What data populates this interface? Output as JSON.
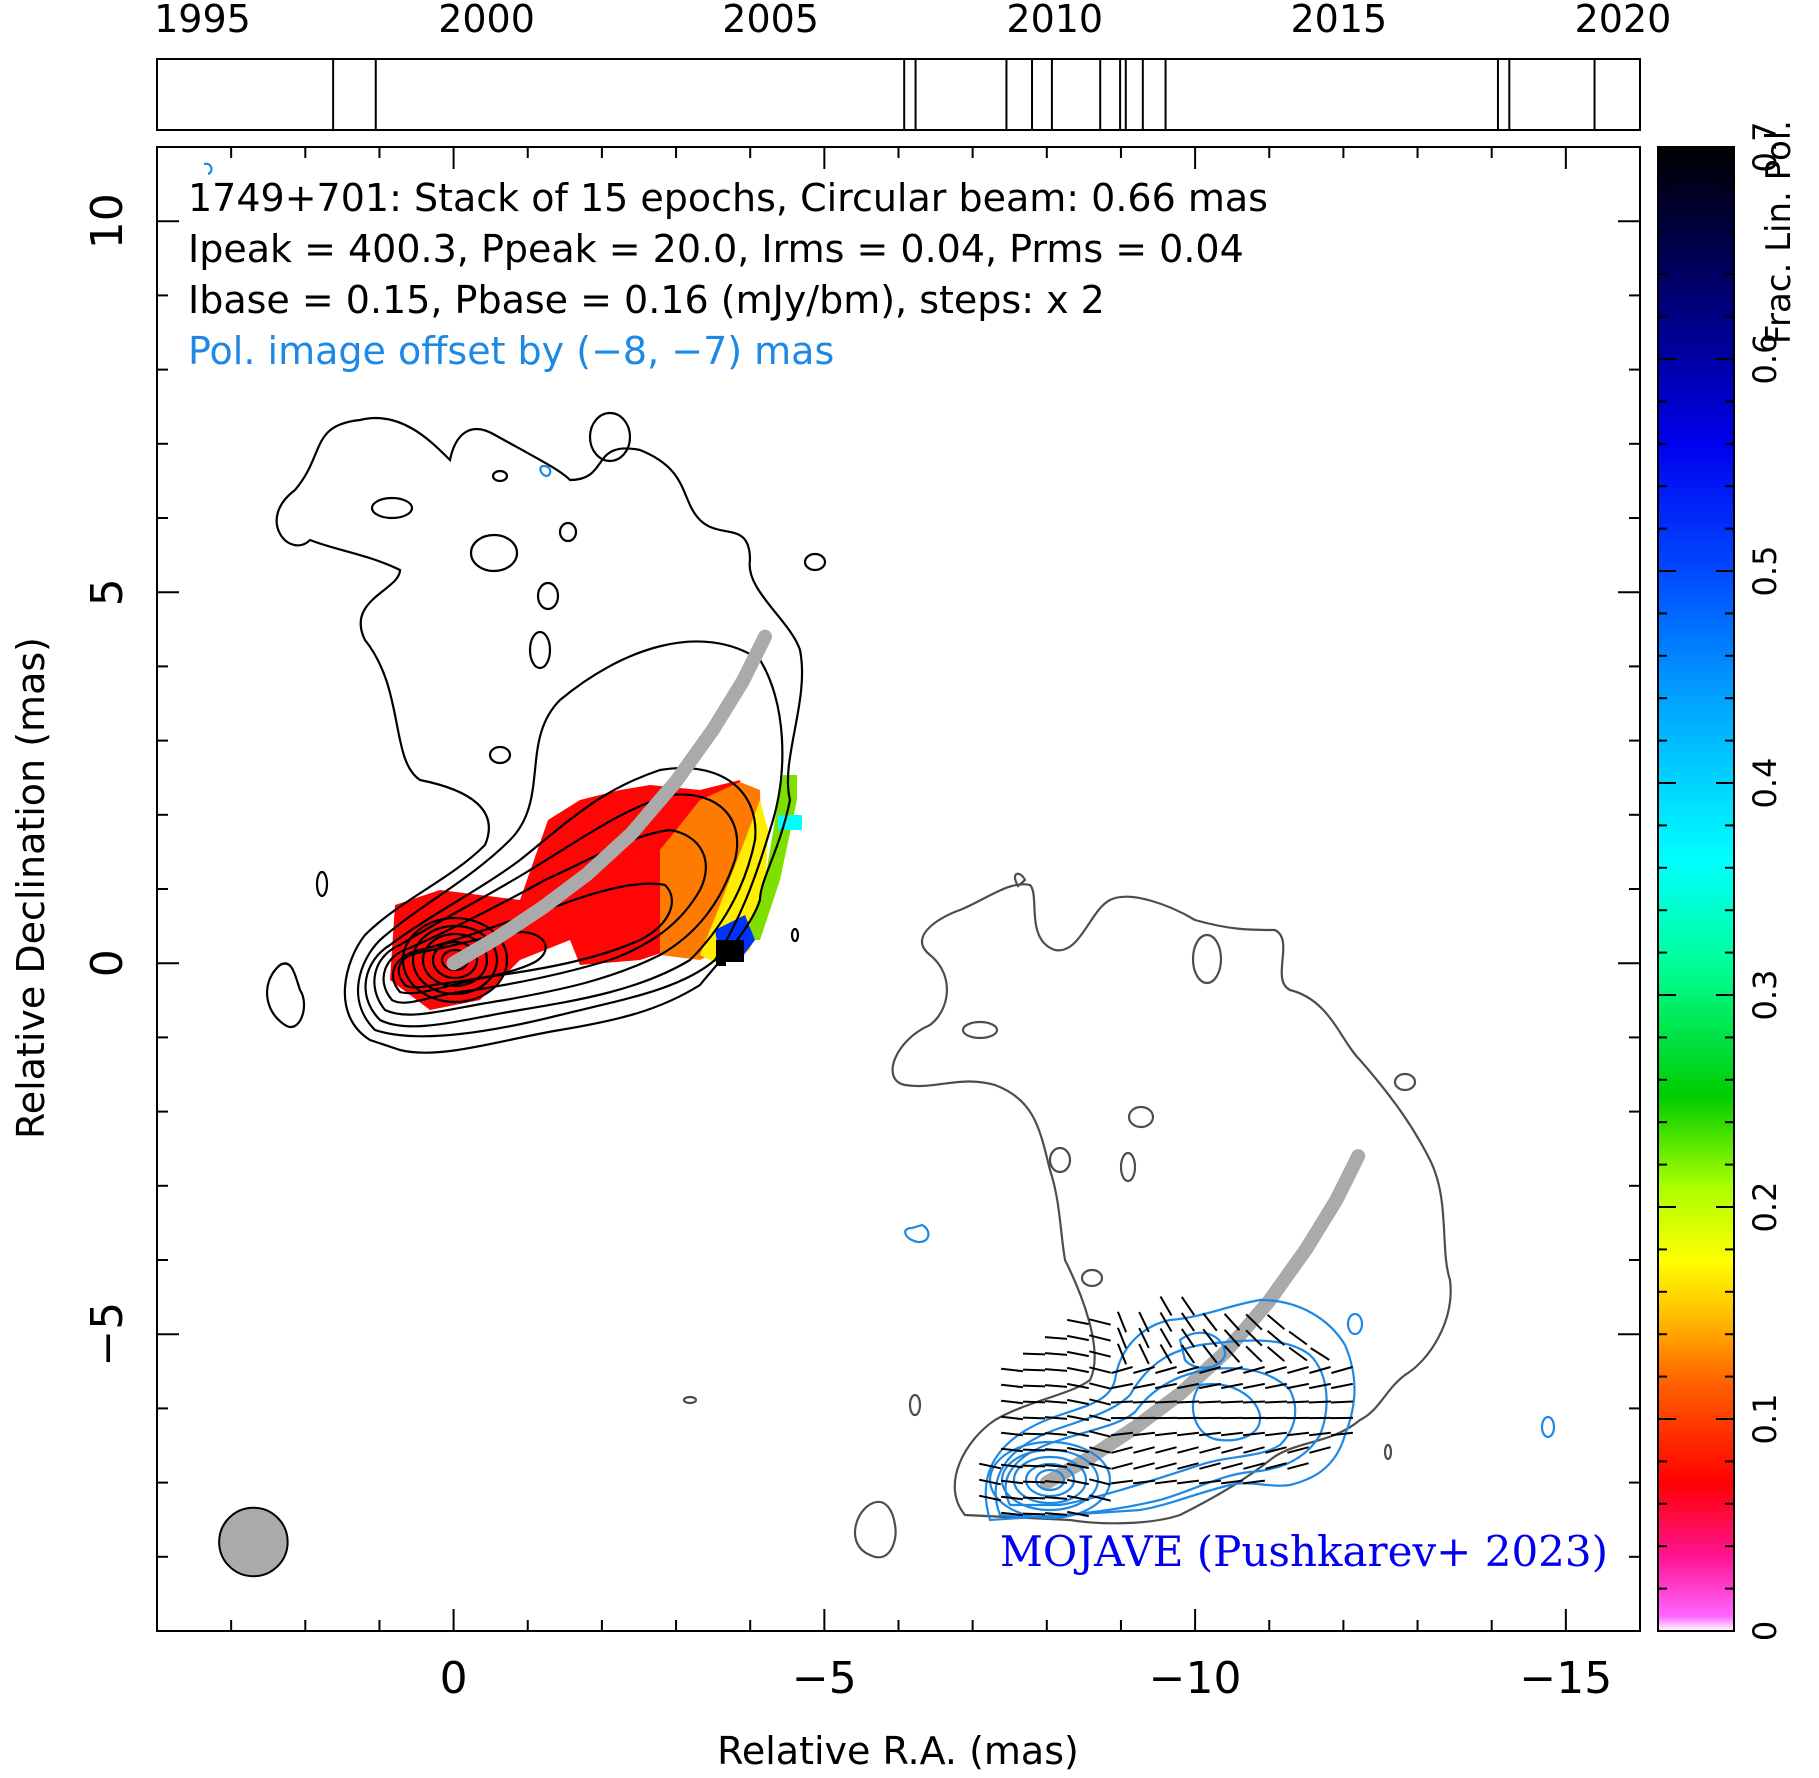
{
  "chart_data": {
    "type": "heatmap",
    "title_lines": [
      "1749+701: Stack of 15 epochs, Circular beam: 0.66 mas",
      "Ipeak = 400.3, Ppeak = 20.0, Irms = 0.04, Prms = 0.04",
      "Ibase = 0.15, Pbase = 0.16 (mJy/bm), steps: x 2",
      "Pol. image offset by (−8, −7) mas"
    ],
    "credit": "MOJAVE (Pushkarev+ 2023)",
    "xlabel": "Relative R.A. (mas)",
    "ylabel": "Relative Declination (mas)",
    "colorbar_label": "Frac. Lin. Pol.",
    "xlim": [
      4,
      -16
    ],
    "ylim": [
      -9,
      11
    ],
    "x_ticks": [
      0,
      -5,
      -10,
      -15
    ],
    "x_tick_labels": [
      "0",
      "−5",
      "−10",
      "−15"
    ],
    "y_ticks": [
      -5,
      0,
      5,
      10
    ],
    "y_tick_labels": [
      "−5",
      "0",
      "5",
      "10"
    ],
    "colorbar": {
      "range": [
        0,
        0.7
      ],
      "ticks": [
        0,
        0.1,
        0.2,
        0.3,
        0.4,
        0.5,
        0.6,
        0.7
      ],
      "tick_labels": [
        "0",
        "0.1",
        "0.2",
        "0.3",
        "0.4",
        "0.5",
        "0.6",
        "0.7"
      ]
    },
    "epoch_timeline": {
      "range": [
        1994.2,
        2020.3
      ],
      "ticks": [
        1995,
        2000,
        2005,
        2010,
        2015,
        2020
      ],
      "tick_labels": [
        "1995",
        "2000",
        "2005",
        "2010",
        "2015",
        "2020"
      ],
      "epochs": [
        1997.3,
        1998.05,
        2007.35,
        2007.55,
        2009.15,
        2009.6,
        2009.95,
        2010.8,
        2011.15,
        2011.25,
        2011.55,
        2011.95,
        2017.8,
        2018.0,
        2019.5
      ]
    },
    "ridge_line": {
      "x": [
        0,
        -0.6,
        -1.2,
        -1.8,
        -2.4,
        -3.0,
        -3.5,
        -3.9,
        -4.2
      ],
      "y": [
        0,
        0.35,
        0.75,
        1.2,
        1.75,
        2.45,
        3.15,
        3.8,
        4.4
      ]
    },
    "beam_diameter_mas": 0.66,
    "beam_center": [
      2.7,
      -7.8
    ],
    "pol_offset": [
      -8,
      -7
    ],
    "colors": {
      "intensity_contour": "#000000",
      "offset_contour": "#4d4d4d",
      "pol_contour": "#1e88e5",
      "ridge": "#aaaaaa",
      "pol_note": "#1e88e5",
      "credit": "#0000ee"
    }
  }
}
